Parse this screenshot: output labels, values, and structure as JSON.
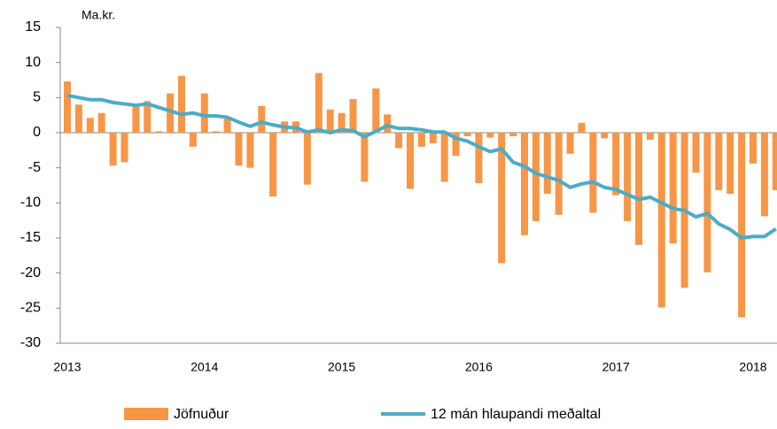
{
  "chart_data": {
    "type": "bar-line",
    "unit_label": "Ma.kr.",
    "categories": [
      "2013",
      null,
      null,
      null,
      null,
      null,
      null,
      null,
      null,
      null,
      null,
      null,
      "2014",
      null,
      null,
      null,
      null,
      null,
      null,
      null,
      null,
      null,
      null,
      null,
      "2015",
      null,
      null,
      null,
      null,
      null,
      null,
      null,
      null,
      null,
      null,
      null,
      "2016",
      null,
      null,
      null,
      null,
      null,
      null,
      null,
      null,
      null,
      null,
      null,
      "2017",
      null,
      null,
      null,
      null,
      null,
      null,
      null,
      null,
      null,
      null,
      null,
      "2018",
      null,
      null
    ],
    "series": [
      {
        "name": "Jöfnuður",
        "type": "bar",
        "color": "#f79646",
        "values": [
          7.3,
          4.0,
          2.1,
          2.8,
          -4.7,
          -4.2,
          3.8,
          4.5,
          0.2,
          5.6,
          8.1,
          -2.0,
          5.6,
          0.2,
          2.0,
          -4.7,
          -5.0,
          3.8,
          -9.1,
          1.6,
          1.6,
          -7.4,
          8.5,
          3.3,
          2.8,
          4.8,
          -7.0,
          6.3,
          2.6,
          -2.2,
          -8.0,
          -2.0,
          -1.5,
          -7.0,
          -3.3,
          -0.5,
          -7.2,
          -0.7,
          -18.6,
          -0.5,
          -14.6,
          -12.6,
          -8.7,
          -11.7,
          -3.0,
          1.4,
          -11.4,
          -0.8,
          -8.9,
          -12.6,
          -16.0,
          -1.0,
          -24.9,
          -15.8,
          -22.1,
          -5.7,
          -19.9,
          -8.2,
          -8.7,
          -26.3,
          -4.4,
          -11.9,
          -8.2
        ]
      },
      {
        "name": "12 mán hlaupandi meðaltal",
        "type": "line",
        "color": "#4bacc6",
        "values": [
          5.3,
          5.0,
          4.7,
          4.7,
          4.3,
          4.1,
          3.9,
          4.1,
          3.6,
          3.1,
          2.6,
          2.8,
          2.4,
          2.4,
          2.2,
          1.5,
          0.9,
          1.5,
          1.1,
          0.8,
          0.7,
          0.1,
          0.4,
          0.0,
          0.4,
          0.3,
          -0.6,
          0.2,
          1.0,
          0.6,
          0.6,
          0.4,
          0.1,
          0.1,
          -0.8,
          -1.2,
          -2.0,
          -2.7,
          -2.3,
          -4.2,
          -4.8,
          -5.8,
          -6.3,
          -6.8,
          -7.8,
          -7.3,
          -7.0,
          -7.8,
          -8.1,
          -8.8,
          -9.5,
          -9.2,
          -10.0,
          -10.8,
          -11.1,
          -12.0,
          -11.5,
          -13.0,
          -13.8,
          -15.0,
          -14.8,
          -14.8,
          -13.7
        ]
      }
    ],
    "ylim": [
      -30,
      15
    ],
    "yticks": [
      -30,
      -25,
      -20,
      -15,
      -10,
      -5,
      0,
      5,
      10,
      15
    ],
    "grid": false
  }
}
